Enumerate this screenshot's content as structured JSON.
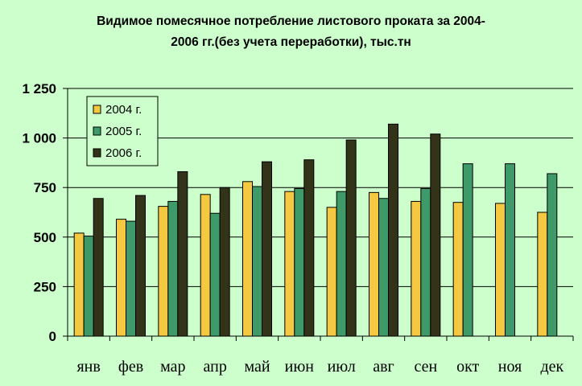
{
  "chart_data": {
    "type": "bar",
    "title_line1": "Видимое помесячное потребление листового проката за  2004-",
    "title_line2": "2006 гг.(без учета переработки), тыс.тн",
    "categories": [
      "янв",
      "фев",
      "мар",
      "апр",
      "май",
      "июн",
      "июл",
      "авг",
      "сен",
      "окт",
      "ноя",
      "дек"
    ],
    "series": [
      {
        "name": "2004 г.",
        "color": "#f5c842",
        "values": [
          520,
          590,
          655,
          715,
          780,
          730,
          650,
          725,
          680,
          675,
          670,
          625
        ]
      },
      {
        "name": "2005 г.",
        "color": "#3f9a6a",
        "values": [
          505,
          580,
          680,
          620,
          755,
          745,
          730,
          695,
          745,
          870,
          870,
          820
        ]
      },
      {
        "name": "2006 г.",
        "color": "#33331a",
        "values": [
          695,
          710,
          830,
          750,
          880,
          890,
          990,
          1070,
          1020,
          null,
          null,
          null
        ]
      }
    ],
    "ylim": [
      0,
      1250
    ],
    "yticks": [
      0,
      250,
      500,
      750,
      1000,
      1250
    ],
    "ytick_labels": [
      "0",
      "250",
      "500",
      "750",
      "1 000",
      "1 250"
    ],
    "grid": true,
    "legend_position": "top-left",
    "xlabel": "",
    "ylabel": ""
  }
}
